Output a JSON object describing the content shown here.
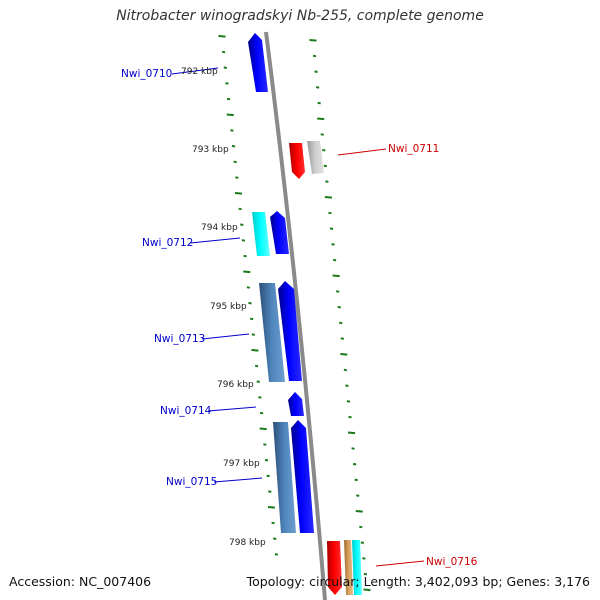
{
  "title": "Nitrobacter winogradskyi Nb-255, complete genome",
  "accession_label": "Accession: NC_007406",
  "topology_label": "Topology: circular; Length: 3,402,093 bp; Genes: 3,176",
  "colors": {
    "backbone": "#8a8a8a",
    "tick": "#1a7a1a",
    "forward_label": "#0000cc",
    "reverse_label": "#cc0000"
  },
  "scale_labels": [
    "792 kbp",
    "793 kbp",
    "794 kbp",
    "795 kbp",
    "796 kbp",
    "797 kbp",
    "798 kbp"
  ],
  "gene_labels": [
    {
      "id": "Nwi_0710",
      "strand": "forward"
    },
    {
      "id": "Nwi_0711",
      "strand": "reverse"
    },
    {
      "id": "Nwi_0712",
      "strand": "forward"
    },
    {
      "id": "Nwi_0713",
      "strand": "forward"
    },
    {
      "id": "Nwi_0714",
      "strand": "forward"
    },
    {
      "id": "Nwi_0715",
      "strand": "forward"
    },
    {
      "id": "Nwi_0716",
      "strand": "reverse"
    }
  ]
}
